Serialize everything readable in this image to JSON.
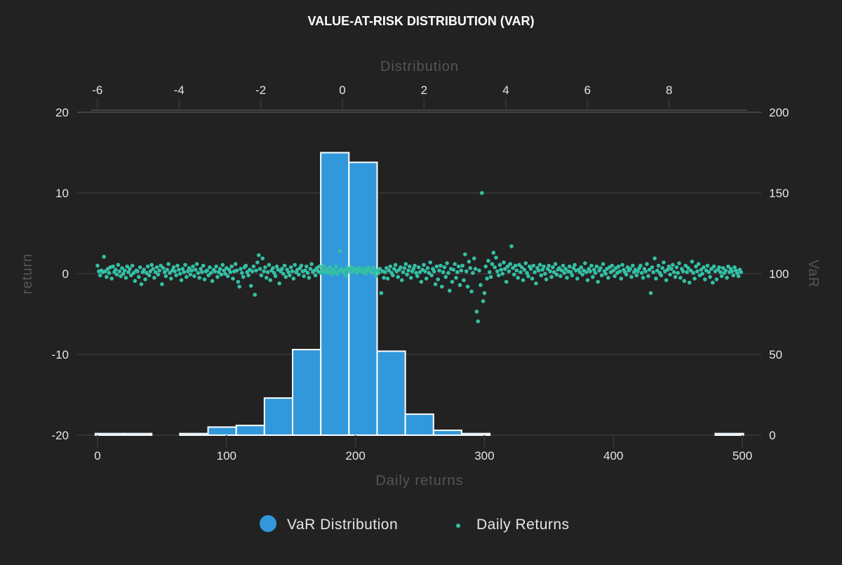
{
  "chart_data": {
    "title": "VALUE-AT-RISK DISTRIBUTION (VAR)",
    "grid": true,
    "legend_placement": "bottom",
    "axes": {
      "bottom": {
        "label": "Daily returns",
        "range": [
          0,
          500
        ],
        "ticks": [
          "0",
          "100",
          "200",
          "300",
          "400",
          "500"
        ]
      },
      "left": {
        "label": "return",
        "range": [
          -20,
          20
        ],
        "ticks": [
          "20",
          "10",
          "0",
          "-10",
          "-20"
        ]
      },
      "top": {
        "label": "Distribution",
        "range": [
          -6,
          10
        ],
        "ticks": [
          "-6",
          "-4",
          "-2",
          "0",
          "2",
          "4",
          "6",
          "8"
        ]
      },
      "right": {
        "label": "VaR",
        "range": [
          0,
          200
        ],
        "ticks": [
          "200",
          "150",
          "100",
          "50",
          "0"
        ]
      }
    },
    "series": [
      {
        "name": "VaR Distribution",
        "type": "bar",
        "axes": "top-right",
        "color": "#3199db",
        "bin_start": -6.05,
        "bin_width": 0.69,
        "counts": [
          1,
          1,
          0,
          1,
          5,
          6,
          23,
          53,
          175,
          169,
          52,
          13,
          3,
          1,
          0,
          0,
          0,
          0,
          0,
          0,
          0,
          0,
          1
        ]
      },
      {
        "name": "Daily Returns",
        "type": "scatter",
        "axes": "bottom-left",
        "color": "#35bfa4",
        "y": [
          1.0,
          0.3,
          -0.2,
          0.4,
          0.2,
          2.1,
          0.3,
          -0.4,
          0.6,
          0.1,
          0.8,
          -0.6,
          0.9,
          0.2,
          0.5,
          -0.1,
          1.1,
          0.3,
          -0.3,
          0.7,
          0.0,
          0.4,
          -0.5,
          0.9,
          0.2,
          0.6,
          -0.2,
          1.0,
          0.1,
          -0.9,
          0.4,
          0.3,
          -0.4,
          0.8,
          -1.3,
          0.2,
          0.5,
          -0.7,
          0.1,
          0.9,
          -0.2,
          0.3,
          1.1,
          0.6,
          -0.5,
          0.2,
          0.8,
          -0.1,
          0.4,
          1.0,
          -1.3,
          0.7,
          0.2,
          -0.3,
          0.5,
          1.2,
          0.1,
          -0.6,
          0.4,
          0.8,
          0.3,
          -0.2,
          1.0,
          0.5,
          0.0,
          -0.8,
          0.6,
          0.2,
          1.1,
          -0.4,
          0.3,
          0.7,
          -0.1,
          0.4,
          0.9,
          -0.3,
          0.5,
          1.2,
          0.1,
          -0.5,
          0.6,
          0.2,
          1.0,
          -0.7,
          0.3,
          0.4,
          -0.2,
          0.8,
          0.1,
          -0.9,
          0.5,
          0.3,
          0.9,
          -0.4,
          0.2,
          0.6,
          -0.1,
          1.1,
          0.4,
          0.0,
          0.7,
          -0.3,
          0.5,
          0.2,
          0.9,
          -0.6,
          0.3,
          1.2,
          0.4,
          -1.0,
          -1.6,
          0.6,
          0.1,
          -0.4,
          0.8,
          1.0,
          0.2,
          -0.2,
          0.5,
          -1.5,
          0.3,
          0.9,
          -2.6,
          0.4,
          1.4,
          2.3,
          0.6,
          -0.2,
          1.9,
          0.3,
          0.8,
          -0.5,
          0.2,
          1.1,
          -0.8,
          0.4,
          0.7,
          0.1,
          -0.3,
          0.9,
          0.5,
          -1.2,
          0.3,
          0.6,
          0.0,
          1.0,
          -0.4,
          0.5,
          0.2,
          -0.2,
          0.8,
          0.3,
          -0.6,
          1.1,
          0.2,
          0.5,
          -0.1,
          0.7,
          1.0,
          0.3,
          -0.3,
          0.4,
          0.9,
          0.1,
          -0.5,
          0.6,
          1.2,
          0.2,
          0.4,
          -0.2,
          0.7,
          0.3,
          0.9,
          0.1,
          0.5,
          1.0,
          0.2,
          0.6,
          0.4,
          0.1,
          0.8,
          0.3,
          -0.1,
          0.5,
          0.2,
          0.9,
          0.0,
          0.4,
          2.8,
          0.6,
          0.3,
          0.1,
          0.5,
          -0.2,
          0.7,
          0.4,
          0.2,
          0.8,
          0.3,
          0.5,
          0.6,
          0.1,
          0.4,
          0.7,
          0.3,
          0.5,
          0.2,
          0.6,
          0.0,
          0.4,
          0.8,
          0.3,
          0.5,
          0.1,
          0.7,
          0.2,
          -0.3,
          0.4,
          0.1,
          0.6,
          -2.4,
          0.3,
          -0.5,
          0.2,
          0.7,
          -0.6,
          0.4,
          0.9,
          0.1,
          -0.2,
          0.6,
          1.1,
          0.3,
          -0.4,
          0.5,
          0.8,
          -0.8,
          0.2,
          0.7,
          1.2,
          -0.1,
          0.4,
          0.9,
          -0.5,
          0.3,
          0.6,
          1.0,
          0.1,
          -0.3,
          0.8,
          0.2,
          -1.0,
          0.5,
          1.1,
          0.3,
          -0.6,
          0.7,
          0.1,
          1.4,
          -0.2,
          0.6,
          0.3,
          -1.3,
          0.9,
          -0.7,
          0.4,
          1.0,
          -1.6,
          0.2,
          0.8,
          -0.4,
          1.3,
          0.1,
          -2.1,
          0.6,
          -1.0,
          0.5,
          1.2,
          -0.5,
          0.2,
          0.9,
          -1.4,
          0.4,
          1.0,
          -0.8,
          2.4,
          0.3,
          -1.6,
          1.5,
          0.7,
          -2.2,
          0.1,
          1.9,
          0.6,
          -4.7,
          -5.9,
          0.4,
          -1.4,
          10.0,
          -3.4,
          -2.4,
          0.9,
          -0.6,
          1.6,
          0.2,
          -0.4,
          1.2,
          2.6,
          0.8,
          2.0,
          0.3,
          -0.2,
          1.1,
          0.5,
          0.0,
          1.4,
          0.6,
          -1.0,
          0.9,
          0.3,
          1.2,
          3.4,
          0.7,
          -0.1,
          1.0,
          0.4,
          -0.5,
          1.1,
          0.2,
          0.8,
          -0.8,
          0.5,
          1.3,
          0.1,
          -0.3,
          0.9,
          0.6,
          -0.6,
          1.0,
          0.2,
          -1.2,
          0.7,
          0.4,
          1.1,
          -0.2,
          0.5,
          0.9,
          0.0,
          -0.7,
          0.6,
          1.0,
          0.3,
          -0.4,
          0.8,
          0.2,
          1.2,
          -0.1,
          0.5,
          0.7,
          -0.3,
          0.4,
          1.0,
          0.1,
          0.6,
          -0.5,
          0.3,
          0.9,
          0.2,
          -0.2,
          0.7,
          1.1,
          0.4,
          -0.6,
          0.5,
          0.2,
          0.8,
          -0.1,
          0.4,
          1.3,
          0.2,
          -0.8,
          0.6,
          0.3,
          1.0,
          -0.4,
          0.5,
          0.1,
          0.9,
          -1.0,
          0.4,
          0.7,
          -0.2,
          1.2,
          0.3,
          0.0,
          0.6,
          -0.5,
          0.8,
          0.2,
          1.0,
          0.4,
          -0.3,
          0.7,
          0.1,
          0.9,
          0.3,
          -0.6,
          1.1,
          0.5,
          0.2,
          -0.1,
          0.8,
          0.4,
          0.6,
          -0.4,
          1.0,
          0.2,
          0.5,
          -0.2,
          0.3,
          0.7,
          1.0,
          0.1,
          -0.5,
          0.6,
          0.3,
          1.2,
          -0.3,
          0.5,
          -2.4,
          0.8,
          0.2,
          1.9,
          -0.6,
          0.4,
          1.0,
          0.1,
          -0.2,
          0.7,
          1.4,
          0.3,
          -0.8,
          0.5,
          0.9,
          -0.1,
          0.6,
          1.1,
          0.2,
          -0.4,
          0.8,
          0.1,
          1.3,
          -0.5,
          0.6,
          0.3,
          -0.9,
          1.0,
          0.2,
          0.7,
          -1.1,
          0.4,
          1.5,
          0.1,
          -0.6,
          0.9,
          0.3,
          1.2,
          -0.2,
          0.5,
          0.0,
          0.8,
          -0.7,
          0.4,
          1.0,
          0.2,
          -0.4,
          0.6,
          -1.1,
          0.9,
          0.3,
          -0.7,
          0.5,
          0.8,
          0.2,
          -0.3,
          0.7,
          0.1,
          0.4,
          -0.5,
          0.9,
          0.2,
          0.6,
          0.3,
          -0.2,
          0.8,
          0.4,
          0.1,
          -0.3,
          0.5,
          0.2
        ]
      }
    ]
  }
}
